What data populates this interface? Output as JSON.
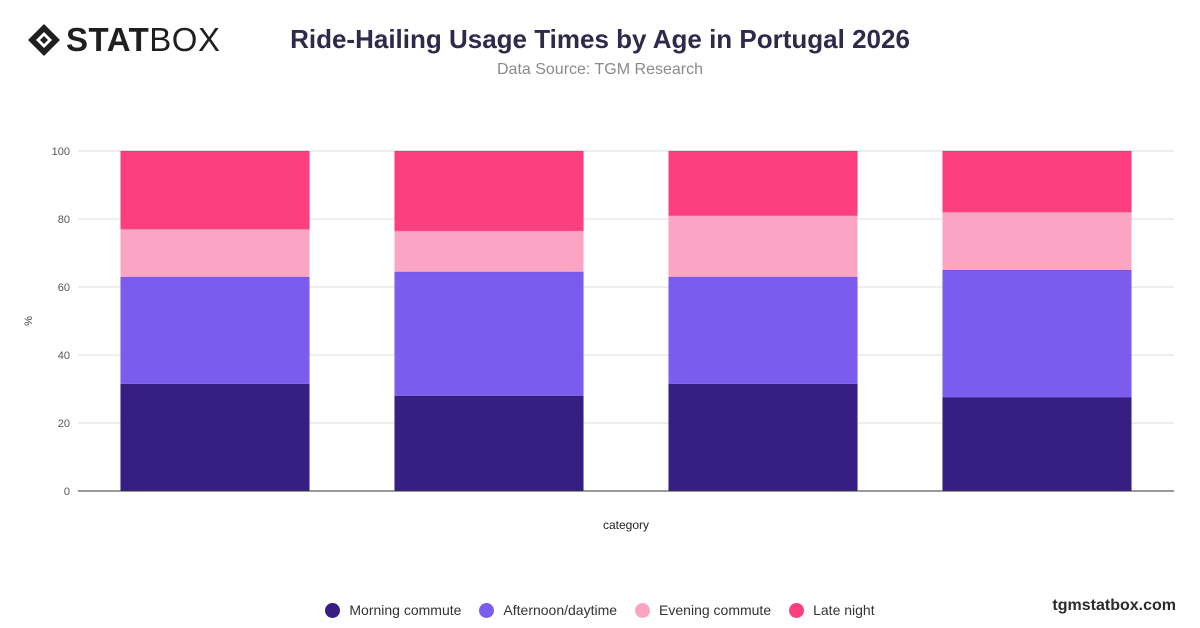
{
  "brand": {
    "bold": "STAT",
    "light": "BOX",
    "site": "tgmstatbox.com"
  },
  "header": {
    "title": "Ride-Hailing Usage Times by Age in Portugal 2026",
    "subtitle": "Data Source: TGM Research"
  },
  "chart_data": {
    "type": "bar",
    "stacked": true,
    "categories": [
      "",
      "",
      "",
      ""
    ],
    "series": [
      {
        "name": "Morning commute",
        "color": "#371E83",
        "values": [
          31.5,
          28,
          31.5,
          27.5
        ]
      },
      {
        "name": "Afternoon/daytime",
        "color": "#7B5CEF",
        "values": [
          31.5,
          36.5,
          31.5,
          37.5
        ]
      },
      {
        "name": "Evening commute",
        "color": "#FCA4C3",
        "values": [
          14,
          12,
          18,
          17
        ]
      },
      {
        "name": "Late night",
        "color": "#FD3F7F",
        "values": [
          23,
          23.5,
          19,
          18
        ]
      }
    ],
    "xlabel": "category",
    "ylabel": "%",
    "ylim": [
      0,
      100
    ],
    "yticks": [
      0,
      20,
      40,
      60,
      80,
      100
    ],
    "grid": true,
    "legend": "bottom"
  }
}
